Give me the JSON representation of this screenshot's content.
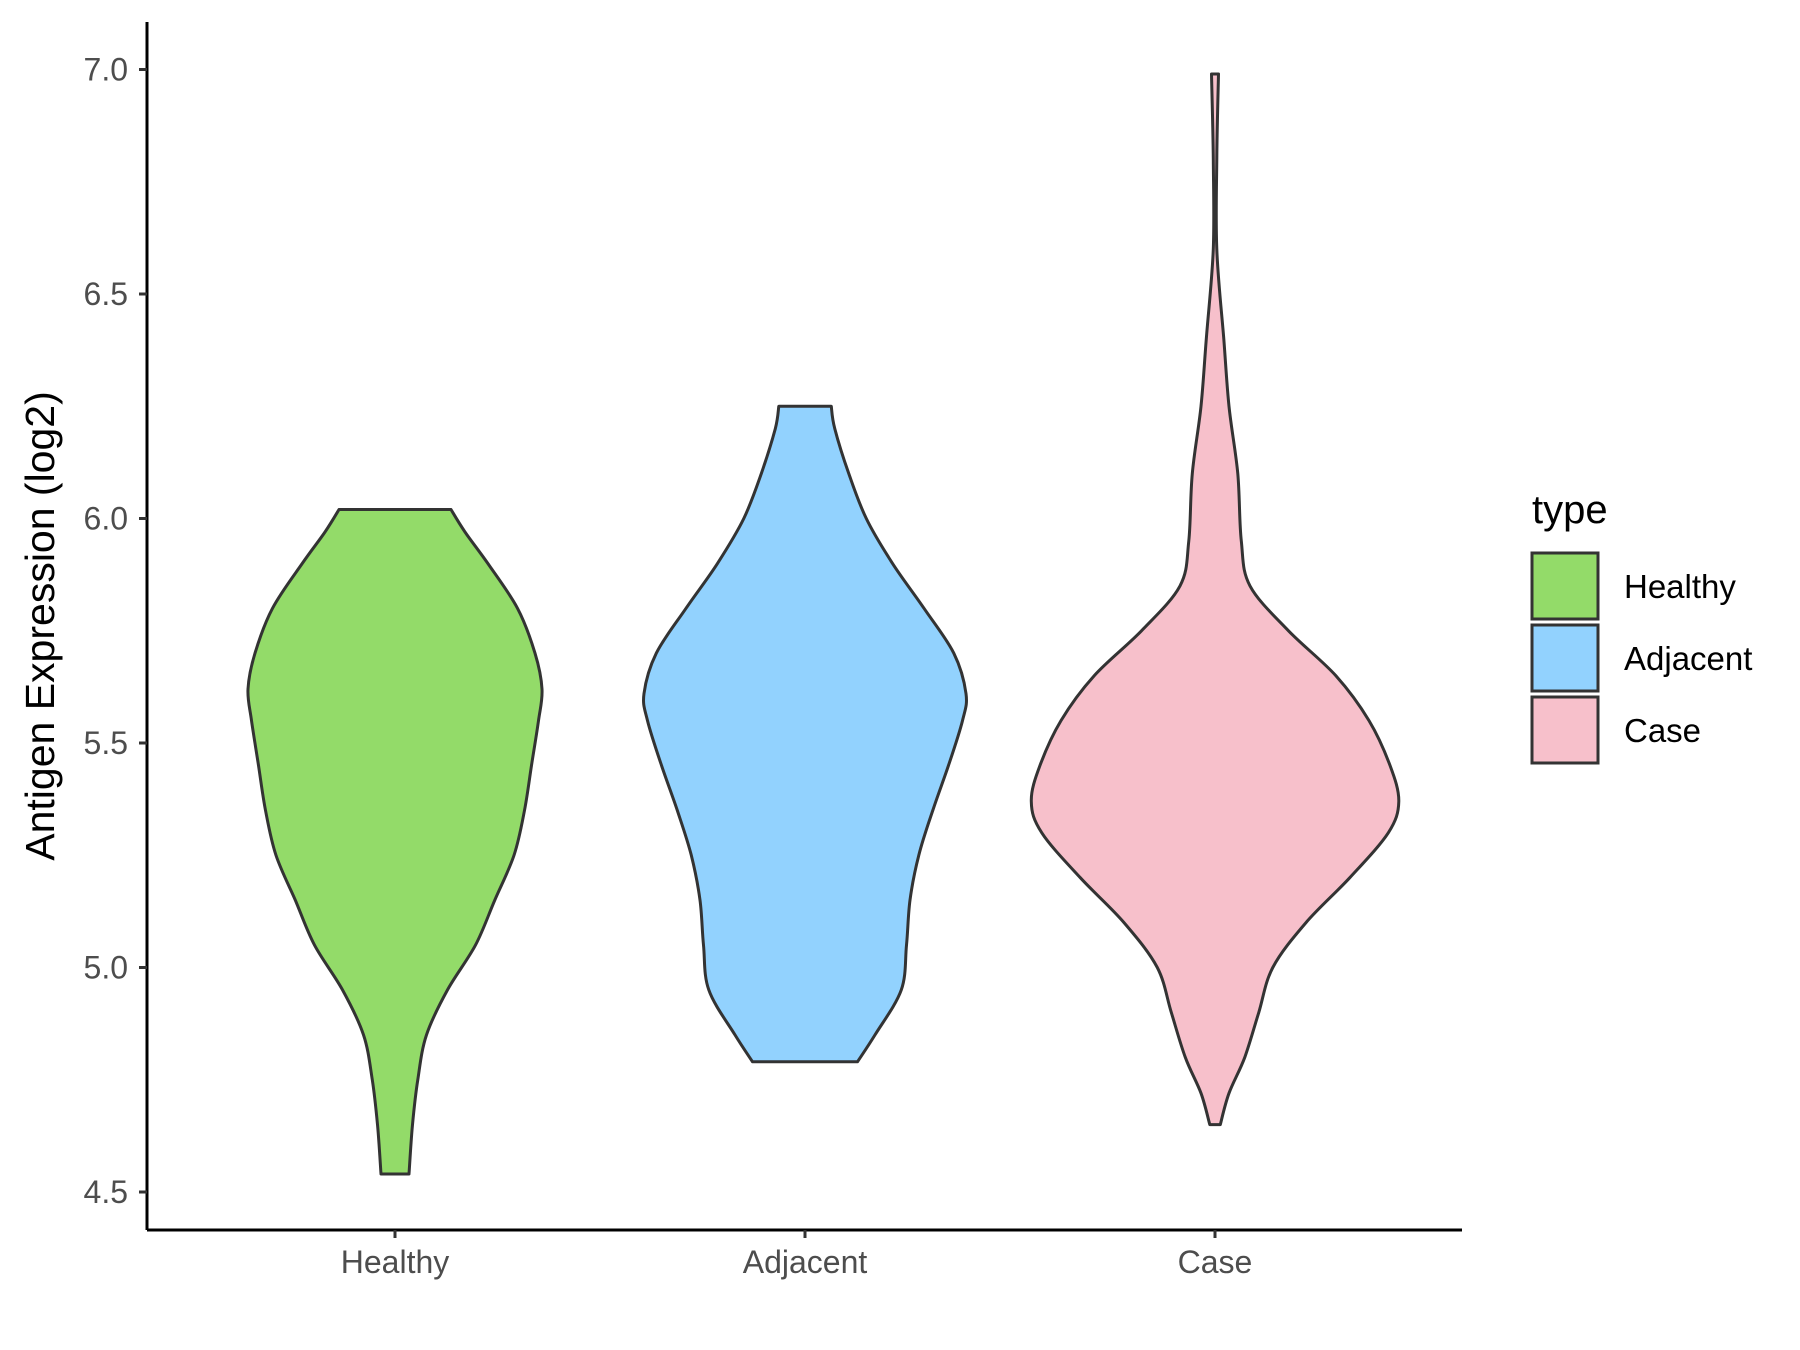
{
  "chart_data": {
    "type": "violin",
    "xlabel": "",
    "ylabel": "Antigen Expression (log2)",
    "ylim": [
      4.4,
      7.1
    ],
    "yticks": [
      4.5,
      5.0,
      5.5,
      6.0,
      6.5,
      7.0
    ],
    "ytick_labels": [
      "4.5",
      "5.0",
      "5.5",
      "6.0",
      "6.5",
      "7.0"
    ],
    "categories": [
      "Healthy",
      "Adjacent",
      "Case"
    ],
    "grid": false,
    "legend": {
      "title": "type",
      "placement": "right",
      "entries": [
        "Healthy",
        "Adjacent",
        "Case"
      ]
    },
    "colors": {
      "Healthy": "#93DB69",
      "Adjacent": "#92D2FE",
      "Case": "#F7C0CB",
      "outline": "#333333"
    },
    "series": [
      {
        "category": "Healthy",
        "min": 4.54,
        "max": 6.02,
        "profile": [
          [
            4.54,
            0.08
          ],
          [
            4.65,
            0.1
          ],
          [
            4.75,
            0.13
          ],
          [
            4.85,
            0.18
          ],
          [
            4.95,
            0.3
          ],
          [
            5.05,
            0.46
          ],
          [
            5.15,
            0.57
          ],
          [
            5.25,
            0.68
          ],
          [
            5.35,
            0.74
          ],
          [
            5.45,
            0.78
          ],
          [
            5.55,
            0.82
          ],
          [
            5.62,
            0.84
          ],
          [
            5.7,
            0.8
          ],
          [
            5.8,
            0.7
          ],
          [
            5.9,
            0.53
          ],
          [
            5.97,
            0.4
          ],
          [
            6.02,
            0.32
          ]
        ]
      },
      {
        "category": "Adjacent",
        "min": 4.79,
        "max": 6.25,
        "profile": [
          [
            4.79,
            0.3
          ],
          [
            4.85,
            0.4
          ],
          [
            4.95,
            0.55
          ],
          [
            5.05,
            0.58
          ],
          [
            5.15,
            0.6
          ],
          [
            5.25,
            0.65
          ],
          [
            5.35,
            0.73
          ],
          [
            5.45,
            0.82
          ],
          [
            5.55,
            0.9
          ],
          [
            5.61,
            0.92
          ],
          [
            5.7,
            0.85
          ],
          [
            5.8,
            0.68
          ],
          [
            5.9,
            0.5
          ],
          [
            6.0,
            0.35
          ],
          [
            6.1,
            0.25
          ],
          [
            6.2,
            0.17
          ],
          [
            6.25,
            0.15
          ]
        ]
      },
      {
        "category": "Case",
        "min": 4.65,
        "max": 6.99,
        "profile": [
          [
            4.65,
            0.03
          ],
          [
            4.72,
            0.08
          ],
          [
            4.8,
            0.17
          ],
          [
            4.9,
            0.25
          ],
          [
            5.0,
            0.33
          ],
          [
            5.1,
            0.52
          ],
          [
            5.2,
            0.77
          ],
          [
            5.3,
            0.99
          ],
          [
            5.37,
            1.05
          ],
          [
            5.45,
            1.0
          ],
          [
            5.55,
            0.88
          ],
          [
            5.65,
            0.69
          ],
          [
            5.75,
            0.42
          ],
          [
            5.85,
            0.2
          ],
          [
            5.95,
            0.15
          ],
          [
            6.1,
            0.13
          ],
          [
            6.25,
            0.08
          ],
          [
            6.4,
            0.05
          ],
          [
            6.6,
            0.01
          ],
          [
            6.8,
            0.01
          ],
          [
            6.99,
            0.02
          ]
        ]
      }
    ]
  }
}
